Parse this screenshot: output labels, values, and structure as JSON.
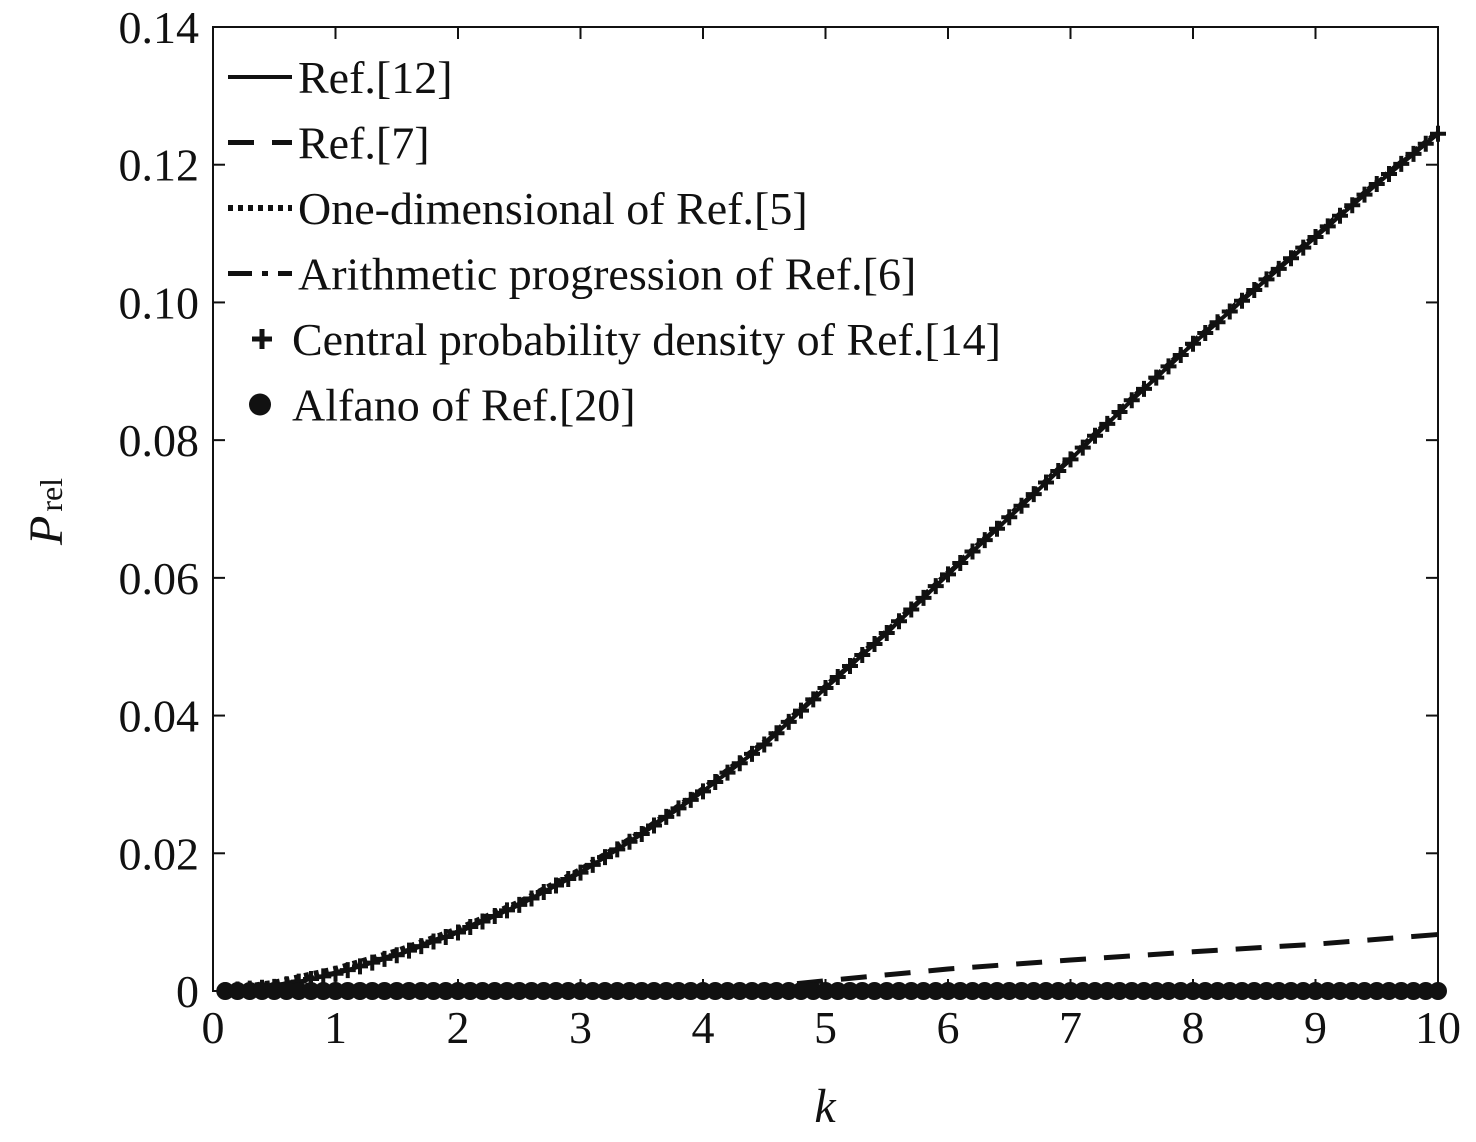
{
  "chart_data": {
    "type": "line",
    "title": "",
    "xlabel": "k",
    "ylabel": {
      "main": "P",
      "sub": "rel"
    },
    "xlim": [
      0,
      10
    ],
    "ylim": [
      0,
      0.14
    ],
    "xticks": [
      0,
      1,
      2,
      3,
      4,
      5,
      6,
      7,
      8,
      9,
      10
    ],
    "xtick_labels": [
      "0",
      "1",
      "2",
      "3",
      "4",
      "5",
      "6",
      "7",
      "8",
      "9",
      "10"
    ],
    "yticks": [
      0,
      0.02,
      0.04,
      0.06,
      0.08,
      0.1,
      0.12,
      0.14
    ],
    "ytick_labels": [
      "0",
      "0.02",
      "0.04",
      "0.06",
      "0.08",
      "0.10",
      "0.12",
      "0.14"
    ],
    "grid": false,
    "legend_position": "top-left",
    "series": [
      {
        "name": "Ref.[12]",
        "style": "solid",
        "color": "#111111",
        "x": [
          0.1,
          0.5,
          1,
          1.5,
          2,
          2.5,
          3,
          3.5,
          4,
          4.5,
          5,
          5.5,
          6,
          6.5,
          7,
          7.5,
          8,
          8.5,
          9,
          9.5,
          10
        ],
        "y": [
          0.0001,
          0.0006,
          0.0025,
          0.0052,
          0.0085,
          0.0125,
          0.0172,
          0.0228,
          0.029,
          0.0358,
          0.044,
          0.052,
          0.0605,
          0.0688,
          0.0772,
          0.0858,
          0.094,
          0.1018,
          0.1095,
          0.1172,
          0.1245
        ]
      },
      {
        "name": "Ref.[7]",
        "style": "dashed",
        "color": "#111111",
        "x": [
          0.1,
          1,
          2,
          3,
          3.5,
          4,
          4.5,
          5,
          6,
          7,
          8,
          9,
          10
        ],
        "y": [
          0,
          0,
          0,
          0,
          5e-05,
          0.0002,
          0.0006,
          0.0015,
          0.0032,
          0.0045,
          0.0057,
          0.0068,
          0.0082
        ]
      },
      {
        "name": "One-dimensional of Ref.[5]",
        "style": "dotted",
        "color": "#111111",
        "x": [
          0.1,
          0.5,
          1,
          1.5,
          2,
          2.5,
          3,
          3.5,
          4,
          4.5,
          5,
          5.5,
          6,
          6.5,
          7,
          7.5,
          8,
          8.5,
          9,
          9.5,
          10
        ],
        "y": [
          0.0002,
          0.0012,
          0.0032,
          0.0058,
          0.009,
          0.0129,
          0.0176,
          0.0231,
          0.0293,
          0.0361,
          0.0442,
          0.0522,
          0.0607,
          0.069,
          0.0774,
          0.086,
          0.0942,
          0.102,
          0.1097,
          0.1174,
          0.1247
        ]
      },
      {
        "name": "Arithmetic progression of Ref.[6]",
        "style": "dash-dot",
        "color": "#111111",
        "x": [
          0.1,
          0.5,
          1,
          1.5,
          2,
          2.5,
          3,
          3.5,
          4,
          4.5,
          5,
          5.5,
          6,
          6.5,
          7,
          7.5,
          8,
          8.5,
          9,
          9.5,
          10
        ],
        "y": [
          0.0001,
          0.0007,
          0.0026,
          0.0053,
          0.0086,
          0.0126,
          0.0173,
          0.0229,
          0.0291,
          0.0359,
          0.0441,
          0.0521,
          0.0606,
          0.0689,
          0.0773,
          0.0859,
          0.0941,
          0.1019,
          0.1096,
          0.1173,
          0.1246
        ]
      },
      {
        "name": "Central probability density of Ref.[14]",
        "style": "plus-markers",
        "color": "#111111",
        "x": [
          0.1,
          0.5,
          1,
          1.5,
          2,
          2.5,
          3,
          3.5,
          4,
          4.5,
          5,
          5.5,
          6,
          6.5,
          7,
          7.5,
          8,
          8.5,
          9,
          9.5,
          10
        ],
        "y": [
          0.0001,
          0.0006,
          0.0025,
          0.0052,
          0.0085,
          0.0125,
          0.0172,
          0.0228,
          0.029,
          0.0358,
          0.044,
          0.052,
          0.0605,
          0.0688,
          0.0772,
          0.0858,
          0.094,
          0.1018,
          0.1095,
          0.1172,
          0.1245
        ]
      },
      {
        "name": "Alfano of Ref.[20]",
        "style": "circle-markers",
        "color": "#111111",
        "x": [
          0.1,
          0.5,
          1,
          1.5,
          2,
          2.5,
          3,
          3.5,
          4,
          4.5,
          5,
          5.5,
          6,
          6.5,
          7,
          7.5,
          8,
          8.5,
          9,
          9.5,
          10
        ],
        "y": [
          0,
          0,
          0,
          0,
          0,
          0,
          0,
          0,
          0,
          0,
          0,
          0,
          0,
          0,
          0,
          0,
          0,
          0,
          0,
          0,
          0
        ]
      }
    ]
  }
}
